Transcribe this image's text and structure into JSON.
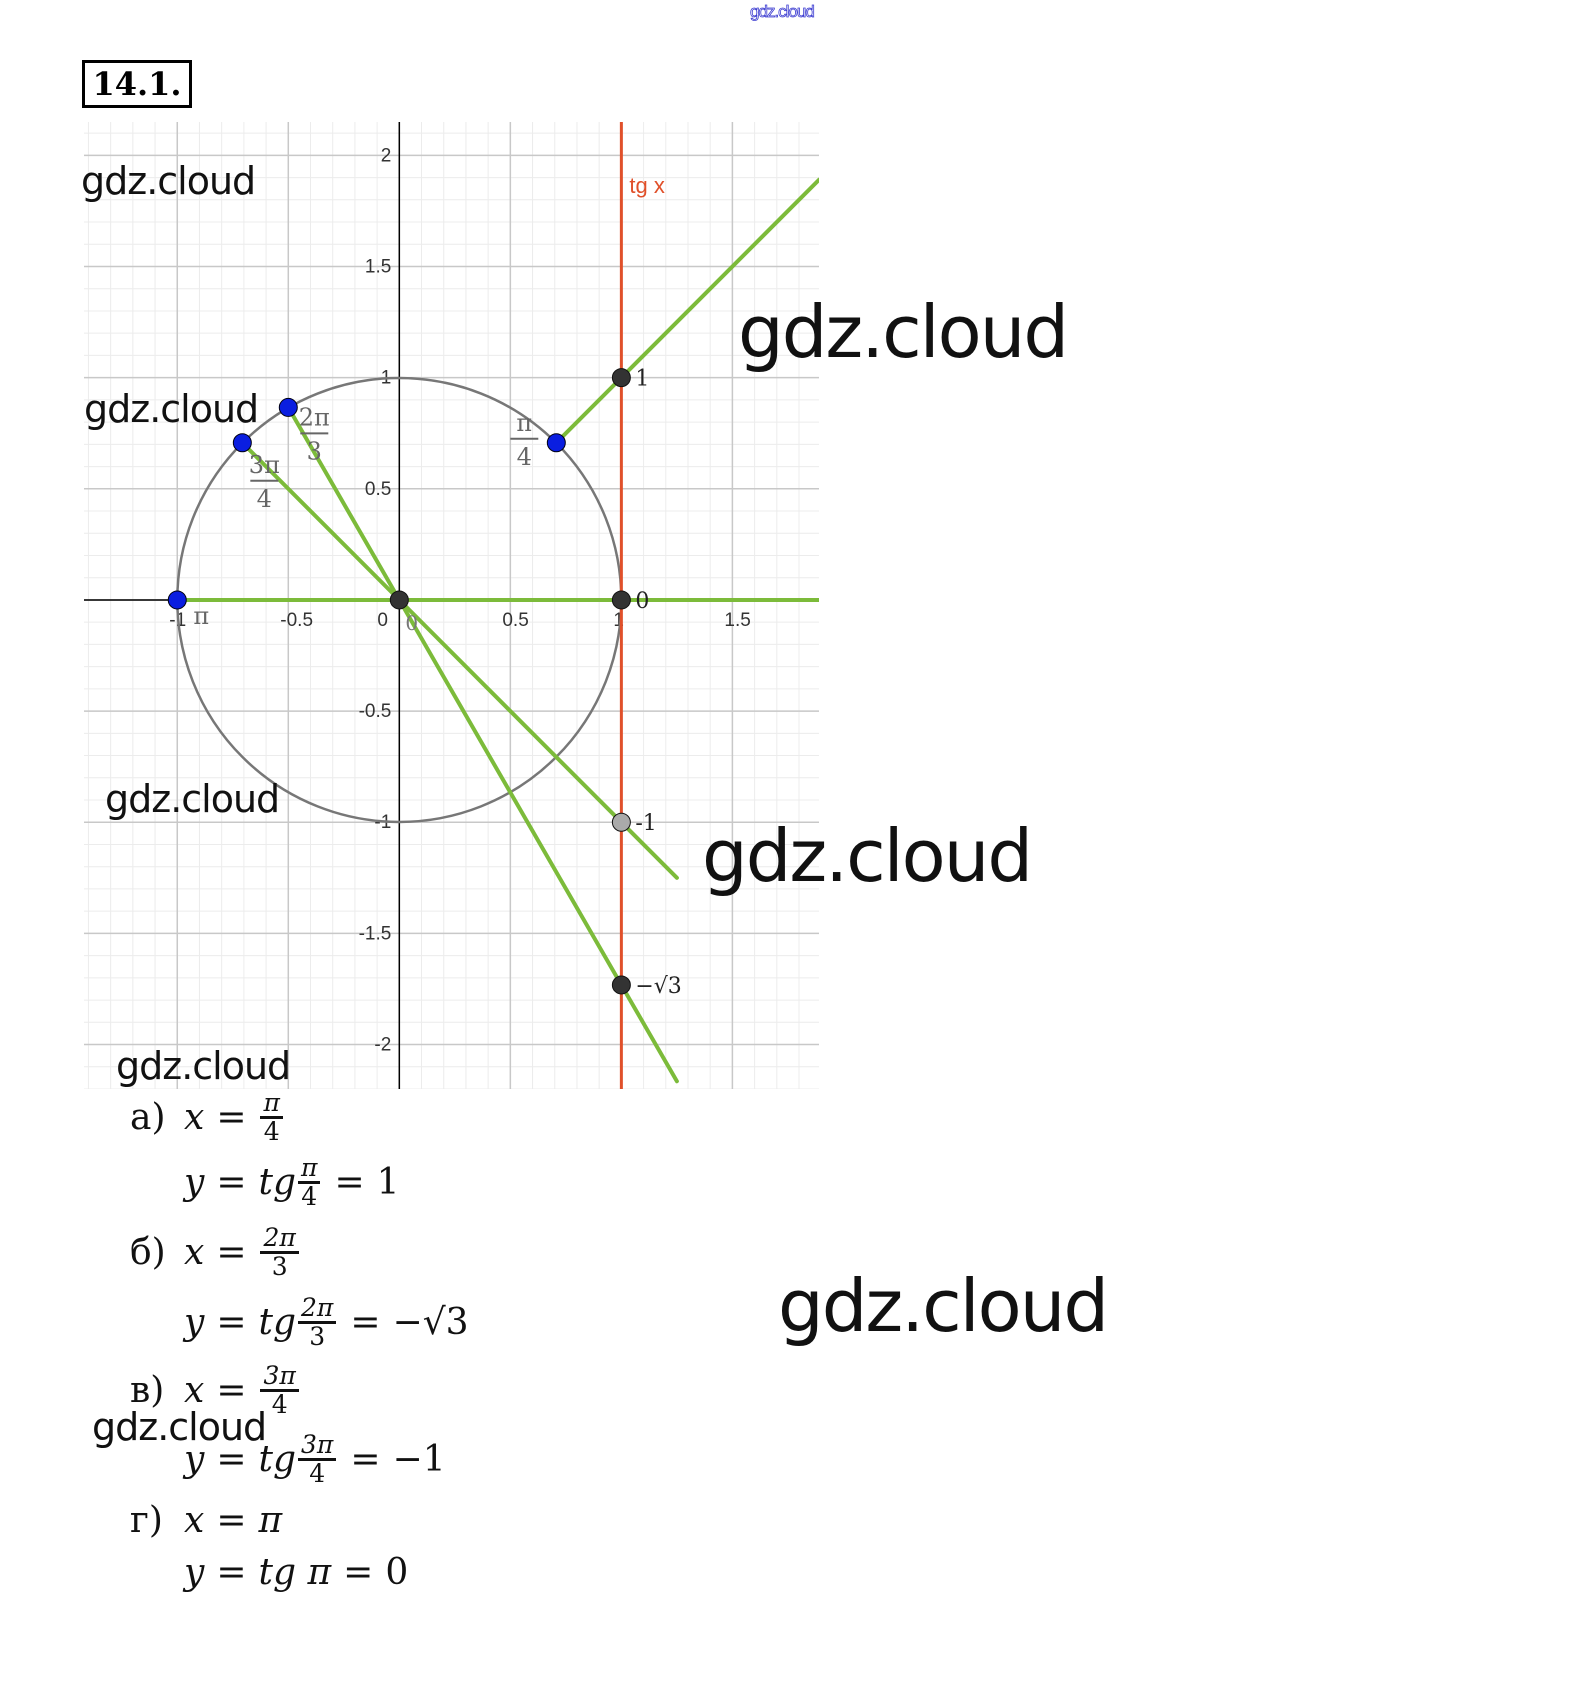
{
  "header": {
    "watermark_top": "gdz.cloud",
    "task_number": "14.1."
  },
  "watermarks": [
    "gdz.cloud",
    "gdz.cloud",
    "gdz.cloud",
    "gdz.cloud",
    "gdz.cloud",
    "gdz.cloud",
    "gdz.cloud",
    "gdz.cloud"
  ],
  "colors": {
    "tangent_line": "#e0502a",
    "rays": "#7cbb3a",
    "points_blue": "#0a1ee0",
    "points_dark": "#333333",
    "circle": "#777777",
    "grid_major": "#c8c8c8",
    "grid_minor": "#ececec"
  },
  "chart_data": {
    "type": "scatter",
    "xlim": [
      -1.42,
      1.89
    ],
    "ylim": [
      -2.2,
      2.15
    ],
    "grid": true,
    "grid_major_step": 0.5,
    "grid_minor_step": 0.1,
    "x_ticks": [
      "-1",
      "-0.5",
      "0",
      "0.5",
      "1",
      "1.5"
    ],
    "y_ticks": [
      "2",
      "1.5",
      "1",
      "0.5",
      "-0.5",
      "-1",
      "-1.5",
      "-2"
    ],
    "unit_circle": {
      "center": [
        0,
        0
      ],
      "radius": 1
    },
    "tangent_line": {
      "x": 1,
      "label": "tg x"
    },
    "circle_points": [
      {
        "label_num": "π",
        "label_den": "4",
        "x": 0.707,
        "y": 0.707
      },
      {
        "label_num": "2π",
        "label_den": "3",
        "x": -0.5,
        "y": 0.866
      },
      {
        "label_num": "3π",
        "label_den": "4",
        "x": -0.707,
        "y": 0.707
      },
      {
        "label_num": "π",
        "label_den": "",
        "x": -1,
        "y": 0
      }
    ],
    "tangent_points": [
      {
        "label": "1",
        "x": 1,
        "y": 1
      },
      {
        "label": "0",
        "x": 1,
        "y": 0
      },
      {
        "label": "-1",
        "x": 1,
        "y": -1
      },
      {
        "label": "−√3",
        "x": 1,
        "y": -1.732
      }
    ],
    "origin_label": "0",
    "origin_point_label": "0"
  },
  "solutions": [
    {
      "label": "а)",
      "x": {
        "num": "π",
        "den": "4"
      },
      "y": {
        "fn": "tg",
        "num": "π",
        "den": "4",
        "result": "1"
      }
    },
    {
      "label": "б)",
      "x": {
        "num": "2π",
        "den": "3"
      },
      "y": {
        "fn": "tg",
        "num": "2π",
        "den": "3",
        "result": "−√3"
      }
    },
    {
      "label": "в)",
      "x": {
        "num": "3π",
        "den": "4"
      },
      "y": {
        "fn": "tg",
        "num": "3π",
        "den": "4",
        "result": "−1"
      }
    },
    {
      "label": "г)",
      "x": {
        "plain": "π"
      },
      "y": {
        "fn": "tg",
        "plain": "π",
        "result": "0"
      }
    }
  ],
  "sym": {
    "x": "x",
    "y": "y",
    "eq": "="
  }
}
